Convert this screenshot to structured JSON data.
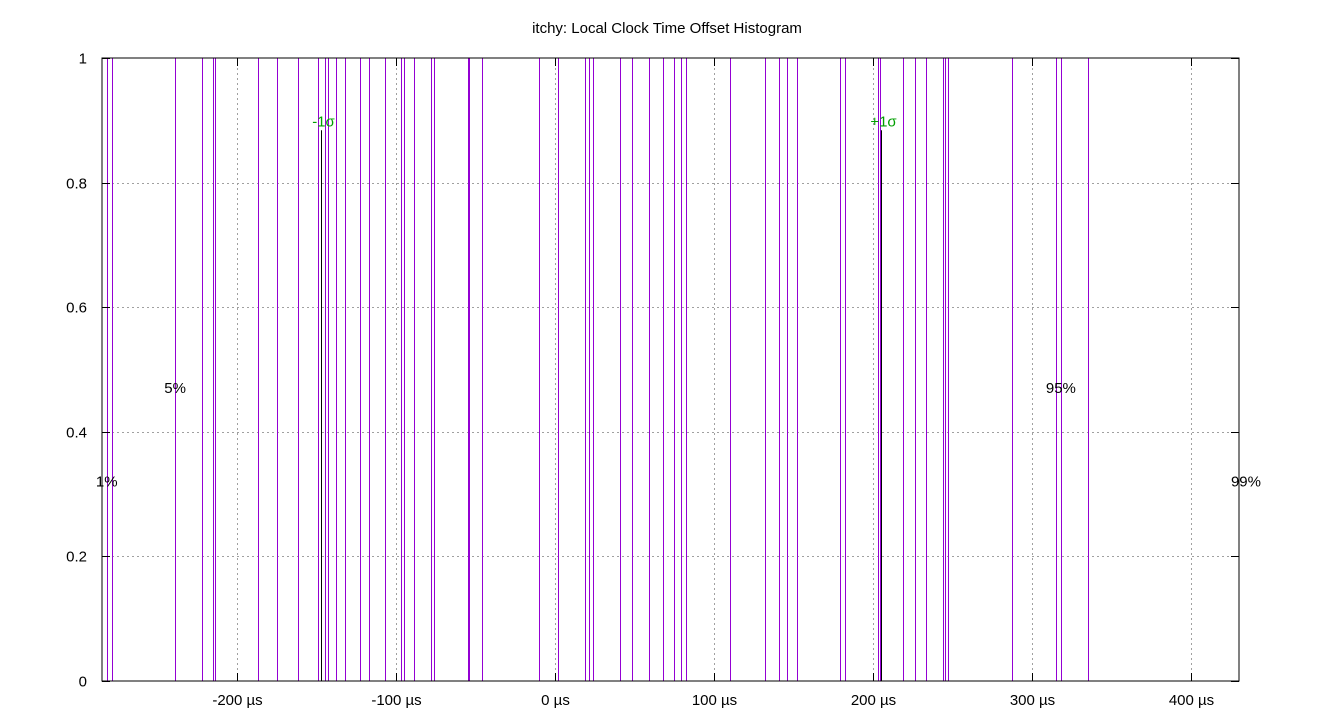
{
  "chart_data": {
    "type": "histogram",
    "title": "itchy: Local Clock Time Offset Histogram",
    "xlabel": "",
    "ylabel": "",
    "xlim": [
      -285,
      430
    ],
    "ylim": [
      0,
      1
    ],
    "x_ticks": [
      {
        "value": -200,
        "label": "-200 µs"
      },
      {
        "value": -100,
        "label": "-100 µs"
      },
      {
        "value": 0,
        "label": "0 µs"
      },
      {
        "value": 100,
        "label": "100 µs"
      },
      {
        "value": 200,
        "label": "200 µs"
      },
      {
        "value": 300,
        "label": "300 µs"
      },
      {
        "value": 400,
        "label": "400 µs"
      }
    ],
    "y_ticks": [
      {
        "value": 0,
        "label": "0"
      },
      {
        "value": 0.2,
        "label": "0.2"
      },
      {
        "value": 0.4,
        "label": "0.4"
      },
      {
        "value": 0.6,
        "label": "0.6"
      },
      {
        "value": 0.8,
        "label": "0.8"
      },
      {
        "value": 1,
        "label": "1"
      }
    ],
    "grid": true,
    "bar_color": "#9400d3",
    "bars": [
      {
        "x": -282,
        "y": 1
      },
      {
        "x": -279,
        "y": 1
      },
      {
        "x": -239,
        "y": 1
      },
      {
        "x": -222,
        "y": 1
      },
      {
        "x": -215,
        "y": 1
      },
      {
        "x": -214,
        "y": 1
      },
      {
        "x": -187,
        "y": 1
      },
      {
        "x": -175,
        "y": 1
      },
      {
        "x": -162,
        "y": 1
      },
      {
        "x": -149,
        "y": 1
      },
      {
        "x": -145,
        "y": 1
      },
      {
        "x": -143,
        "y": 1
      },
      {
        "x": -138,
        "y": 1
      },
      {
        "x": -132,
        "y": 1
      },
      {
        "x": -123,
        "y": 1
      },
      {
        "x": -117,
        "y": 1
      },
      {
        "x": -107,
        "y": 1
      },
      {
        "x": -97,
        "y": 1
      },
      {
        "x": -95,
        "y": 1
      },
      {
        "x": -89,
        "y": 1
      },
      {
        "x": -78,
        "y": 1
      },
      {
        "x": -76,
        "y": 1
      },
      {
        "x": -55,
        "y": 1
      },
      {
        "x": -54,
        "y": 1
      },
      {
        "x": -46,
        "y": 1
      },
      {
        "x": -10,
        "y": 1
      },
      {
        "x": 2,
        "y": 1
      },
      {
        "x": 19,
        "y": 1
      },
      {
        "x": 21,
        "y": 1
      },
      {
        "x": 24,
        "y": 1
      },
      {
        "x": 41,
        "y": 1
      },
      {
        "x": 48,
        "y": 1
      },
      {
        "x": 59,
        "y": 1
      },
      {
        "x": 68,
        "y": 1
      },
      {
        "x": 75,
        "y": 1
      },
      {
        "x": 79,
        "y": 1
      },
      {
        "x": 82,
        "y": 1
      },
      {
        "x": 110,
        "y": 1
      },
      {
        "x": 132,
        "y": 1
      },
      {
        "x": 141,
        "y": 1
      },
      {
        "x": 146,
        "y": 1
      },
      {
        "x": 152,
        "y": 1
      },
      {
        "x": 179,
        "y": 1
      },
      {
        "x": 182,
        "y": 1
      },
      {
        "x": 203,
        "y": 1
      },
      {
        "x": 204,
        "y": 1
      },
      {
        "x": 219,
        "y": 1
      },
      {
        "x": 226,
        "y": 1
      },
      {
        "x": 233,
        "y": 1
      },
      {
        "x": 244,
        "y": 1
      },
      {
        "x": 245,
        "y": 1
      },
      {
        "x": 247,
        "y": 1
      },
      {
        "x": 287,
        "y": 1
      },
      {
        "x": 315,
        "y": 1
      },
      {
        "x": 318,
        "y": 1
      },
      {
        "x": 335,
        "y": 1
      }
    ],
    "percentile_labels": [
      {
        "label": "1%",
        "x": -282,
        "y": 0.32
      },
      {
        "label": "5%",
        "x": -239,
        "y": 0.47
      },
      {
        "label": "95%",
        "x": 318,
        "y": 0.47
      },
      {
        "label": "99%",
        "x": 435,
        "y": 0.32
      }
    ],
    "sigma_markers": [
      {
        "label": "-1σ",
        "x": -147,
        "y": 0.9
      },
      {
        "label": "+1σ",
        "x": 205,
        "y": 0.9
      }
    ],
    "sigma_label_color": "#009e00"
  }
}
